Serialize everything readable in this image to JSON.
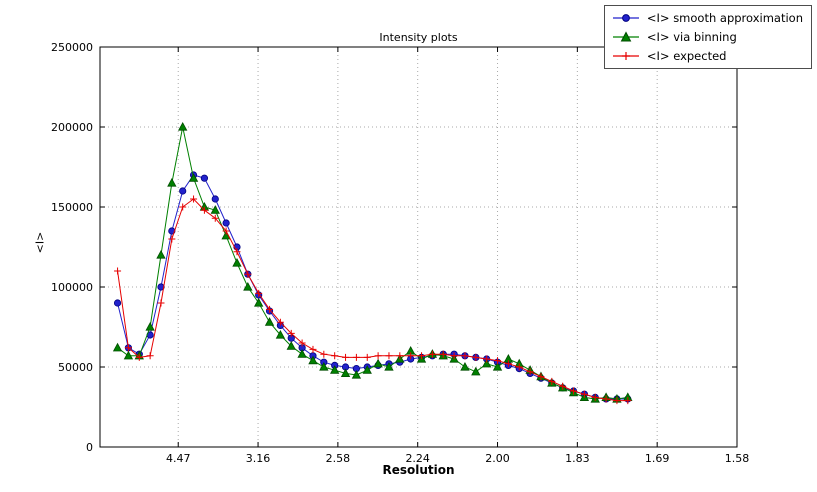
{
  "figure": {
    "title": "Intensity plots",
    "xlabel": "Resolution",
    "ylabel": "<I>"
  },
  "chart_data": {
    "type": "line",
    "title": "Intensity plots",
    "xlabel": "Resolution",
    "ylabel": "<I>",
    "grid": true,
    "legend_position": "upper right",
    "x_axis": {
      "description": "resolution axis, tick labels are d-spacings, spacing linear in 1/d^2",
      "lim": [
        0.001,
        0.4
      ],
      "ticks": [
        {
          "pos": 0.05,
          "label": "4.47"
        },
        {
          "pos": 0.1,
          "label": "3.16"
        },
        {
          "pos": 0.15,
          "label": "2.58"
        },
        {
          "pos": 0.2,
          "label": "2.24"
        },
        {
          "pos": 0.25,
          "label": "2.00"
        },
        {
          "pos": 0.3,
          "label": "1.83"
        },
        {
          "pos": 0.35,
          "label": "1.69"
        },
        {
          "pos": 0.4,
          "label": "1.58"
        }
      ]
    },
    "y_axis": {
      "lim": [
        0,
        250000
      ],
      "ticks": [
        {
          "pos": 0,
          "label": "0"
        },
        {
          "pos": 50000,
          "label": "50000"
        },
        {
          "pos": 100000,
          "label": "100000"
        },
        {
          "pos": 150000,
          "label": "150000"
        },
        {
          "pos": 200000,
          "label": "200000"
        },
        {
          "pos": 250000,
          "label": "250000"
        }
      ]
    },
    "x": [
      0.012,
      0.0188,
      0.0256,
      0.0324,
      0.0392,
      0.046,
      0.0528,
      0.0596,
      0.0664,
      0.0732,
      0.08,
      0.0868,
      0.0936,
      0.1004,
      0.1072,
      0.114,
      0.1208,
      0.1276,
      0.1344,
      0.1412,
      0.148,
      0.1548,
      0.1616,
      0.1684,
      0.1752,
      0.182,
      0.1888,
      0.1956,
      0.2024,
      0.2092,
      0.216,
      0.2228,
      0.2296,
      0.2364,
      0.2432,
      0.25,
      0.2568,
      0.2636,
      0.2704,
      0.2772,
      0.284,
      0.2908,
      0.2976,
      0.3044,
      0.3112,
      0.318,
      0.3248,
      0.3316
    ],
    "series": [
      {
        "name": "<I> smooth approximation",
        "marker": "circle",
        "color": "#2222cc",
        "edge_color": "#00007f",
        "values": [
          90000,
          62000,
          58000,
          70000,
          100000,
          135000,
          160000,
          170000,
          168000,
          155000,
          140000,
          125000,
          108000,
          95000,
          85000,
          76000,
          68000,
          62000,
          57000,
          53000,
          51000,
          50000,
          49000,
          50000,
          51000,
          52000,
          53000,
          55000,
          56000,
          57000,
          58000,
          58000,
          57000,
          56000,
          55000,
          53000,
          51000,
          49000,
          46000,
          43000,
          40000,
          37000,
          35000,
          33000,
          31000,
          30000,
          30000,
          30000
        ]
      },
      {
        "name": "<I> via binning",
        "marker": "triangle",
        "color": "#008000",
        "edge_color": "#004d00",
        "values": [
          62000,
          57000,
          57000,
          75000,
          120000,
          165000,
          200000,
          168000,
          150000,
          148000,
          132000,
          115000,
          100000,
          90000,
          78000,
          70000,
          63000,
          58000,
          54000,
          50000,
          48000,
          46000,
          45000,
          48000,
          52000,
          50000,
          55000,
          60000,
          55000,
          58000,
          57000,
          55000,
          50000,
          47000,
          52000,
          50000,
          55000,
          52000,
          48000,
          44000,
          40000,
          37000,
          34000,
          31000,
          30000,
          31000,
          30000,
          31000
        ]
      },
      {
        "name": "<I> expected",
        "marker": "plus",
        "color": "#e60000",
        "edge_color": "#e60000",
        "values": [
          110000,
          62000,
          56000,
          57000,
          90000,
          130000,
          150000,
          155000,
          148000,
          143000,
          135000,
          122000,
          108000,
          96000,
          86000,
          78000,
          71000,
          65000,
          61000,
          58000,
          57000,
          56000,
          56000,
          56000,
          57000,
          57000,
          57000,
          57000,
          57000,
          58000,
          58000,
          57000,
          57000,
          56000,
          55000,
          54000,
          52000,
          50000,
          47000,
          44000,
          41000,
          38000,
          35000,
          33000,
          31000,
          30000,
          29000,
          29000
        ]
      }
    ]
  },
  "style": {
    "grid_color": "#aaaaaa",
    "axis_color": "#000000"
  }
}
